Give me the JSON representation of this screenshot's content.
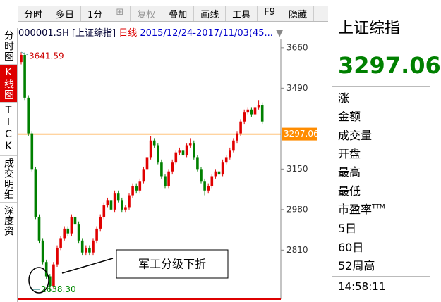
{
  "toolbar": [
    "分时",
    "多日",
    "1分",
    "复权",
    "叠加",
    "画线",
    "工具",
    "F9",
    "隐藏"
  ],
  "side_tabs": [
    "分时图",
    "K线图",
    "TICK",
    "成交明细",
    "深度资"
  ],
  "chart_header": {
    "code": "000001.SH [上证综指]",
    "period": "日线",
    "range": "2015/12/24-2017/11/03(45..."
  },
  "chart_data": {
    "type": "candlestick",
    "open": [
      3600,
      3630,
      3450,
      3300,
      3150,
      2950,
      2850,
      2760,
      2700,
      2660,
      2750,
      2820,
      2860,
      2900,
      2880,
      2950,
      2920,
      2850,
      2800,
      2820,
      2800,
      2850,
      2900,
      2950,
      3000,
      3020,
      2980,
      3050,
      3020,
      2980,
      2990,
      3040,
      3080,
      3060,
      3100,
      3150,
      3200,
      3270,
      3250,
      3180,
      3120,
      3080,
      3140,
      3180,
      3220,
      3230,
      3210,
      3250,
      3260,
      3200,
      3150,
      3100,
      3060,
      3080,
      3120,
      3140,
      3130,
      3180,
      3200,
      3230,
      3270,
      3300,
      3350,
      3390,
      3400,
      3380,
      3410,
      3420
    ],
    "close": [
      3630,
      3450,
      3300,
      3150,
      2950,
      2850,
      2760,
      2700,
      2660,
      2750,
      2820,
      2860,
      2900,
      2880,
      2950,
      2920,
      2850,
      2800,
      2820,
      2800,
      2850,
      2900,
      2950,
      3000,
      3020,
      2980,
      3050,
      3020,
      2980,
      2990,
      3040,
      3080,
      3060,
      3100,
      3150,
      3200,
      3270,
      3250,
      3180,
      3120,
      3080,
      3140,
      3180,
      3220,
      3230,
      3210,
      3250,
      3260,
      3200,
      3150,
      3100,
      3060,
      3080,
      3120,
      3140,
      3130,
      3180,
      3200,
      3230,
      3270,
      3300,
      3350,
      3390,
      3400,
      3380,
      3410,
      3420,
      3350
    ],
    "high": [
      3641.59,
      3640,
      3460,
      3310,
      3160,
      2960,
      2860,
      2770,
      2710,
      2760,
      2830,
      2870,
      2910,
      2910,
      2960,
      2960,
      2930,
      2860,
      2830,
      2830,
      2860,
      2910,
      2960,
      3010,
      3030,
      3030,
      3060,
      3060,
      3030,
      3000,
      3050,
      3090,
      3090,
      3110,
      3160,
      3210,
      3290,
      3280,
      3260,
      3190,
      3130,
      3150,
      3190,
      3230,
      3240,
      3240,
      3260,
      3280,
      3270,
      3210,
      3160,
      3110,
      3090,
      3130,
      3150,
      3150,
      3190,
      3210,
      3240,
      3280,
      3310,
      3360,
      3400,
      3410,
      3410,
      3420,
      3440,
      3430
    ],
    "low": [
      3590,
      3440,
      3290,
      3140,
      2940,
      2840,
      2750,
      2690,
      2638.3,
      2650,
      2740,
      2810,
      2850,
      2870,
      2870,
      2910,
      2840,
      2790,
      2790,
      2790,
      2790,
      2840,
      2890,
      2940,
      2990,
      2970,
      2970,
      3010,
      2970,
      2970,
      2980,
      3030,
      3050,
      3050,
      3090,
      3140,
      3190,
      3240,
      3170,
      3110,
      3070,
      3070,
      3130,
      3170,
      3210,
      3200,
      3200,
      3240,
      3190,
      3140,
      3090,
      3040,
      3050,
      3070,
      3110,
      3120,
      3120,
      3170,
      3190,
      3220,
      3260,
      3290,
      3340,
      3380,
      3370,
      3370,
      3400,
      3340
    ],
    "up_color": "#e00000",
    "down_color": "#008000",
    "ylim": [
      2604,
      3698
    ],
    "yticks": [
      3660,
      3490,
      3150,
      2980,
      2810
    ],
    "last_price": {
      "value": 3297.06,
      "label": "3297.06",
      "color": "#ff8c00"
    },
    "annotations": [
      {
        "value": 3641.59,
        "label": "3641.59"
      },
      {
        "value": 2638.3,
        "label": "2638.30"
      }
    ],
    "callout": "军工分级下折"
  },
  "info_panel": {
    "name": "上证综指",
    "price": "3297.06",
    "rows": [
      "涨",
      "金额",
      "成交量",
      "开盘",
      "最高",
      "最低"
    ],
    "pe": "市盈率",
    "pe_sup": "TTM",
    "rows2": [
      "5日",
      "60日",
      "52周高"
    ],
    "time": "14:58:11"
  }
}
